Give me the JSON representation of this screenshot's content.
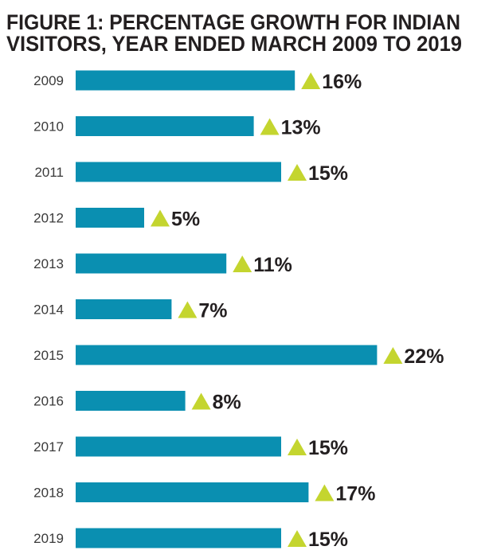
{
  "chart_data": {
    "type": "bar",
    "orientation": "horizontal",
    "title": [
      "FIGURE 1: PERCENTAGE GROWTH FOR INDIAN",
      "VISITORS, YEAR ENDED MARCH 2009 TO 2019"
    ],
    "categories": [
      "2009",
      "2010",
      "2011",
      "2012",
      "2013",
      "2014",
      "2015",
      "2016",
      "2017",
      "2018",
      "2019"
    ],
    "values": [
      16,
      13,
      15,
      5,
      11,
      7,
      22,
      8,
      15,
      17,
      15
    ],
    "data_labels": [
      "16%",
      "13%",
      "15%",
      "5%",
      "11%",
      "7%",
      "22%",
      "8%",
      "15%",
      "17%",
      "15%"
    ],
    "unit": "%",
    "indicator_icon": "up-triangle-icon",
    "grid": false,
    "colors": {
      "bar": "#0a8fb1",
      "triangle": "#c4d52f",
      "text": "#231f20"
    }
  }
}
